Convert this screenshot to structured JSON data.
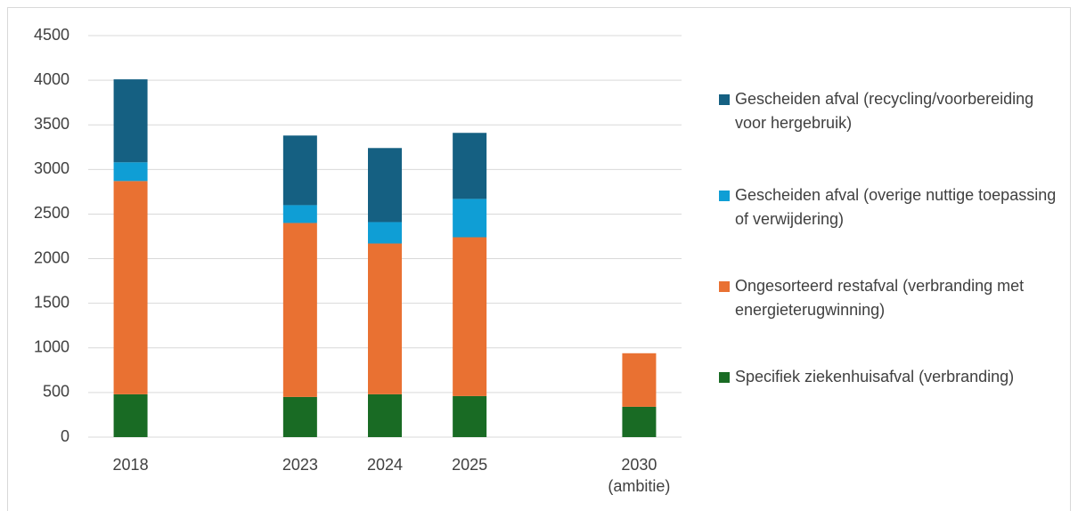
{
  "chart_data": {
    "type": "stacked_bar",
    "categories": [
      "2018",
      null,
      "2023",
      "2024",
      "2025",
      null,
      "2030\n(ambitie)"
    ],
    "series": [
      {
        "name": "Specifiek ziekenhuisafval (verbranding)",
        "color": "#196b24",
        "values": [
          480,
          null,
          450,
          480,
          460,
          null,
          340
        ]
      },
      {
        "name": "Ongesorteerd restafval (verbranding met energieterugwinning)",
        "color": "#e97132",
        "values": [
          2390,
          null,
          1950,
          1690,
          1780,
          null,
          600
        ]
      },
      {
        "name": "Gescheiden afval (overige nuttige toepassing of verwijdering)",
        "color": "#0f9ed5",
        "values": [
          210,
          null,
          200,
          240,
          430,
          null,
          0
        ]
      },
      {
        "name": "Gescheiden afval (recycling/voorbereiding voor hergebruik)",
        "color": "#156082",
        "values": [
          930,
          null,
          780,
          830,
          740,
          null,
          0
        ]
      }
    ],
    "ylim": [
      0,
      4500
    ],
    "yticks": [
      0,
      500,
      1000,
      1500,
      2000,
      2500,
      3000,
      3500,
      4000,
      4500
    ],
    "grid": true,
    "legend": "right"
  }
}
